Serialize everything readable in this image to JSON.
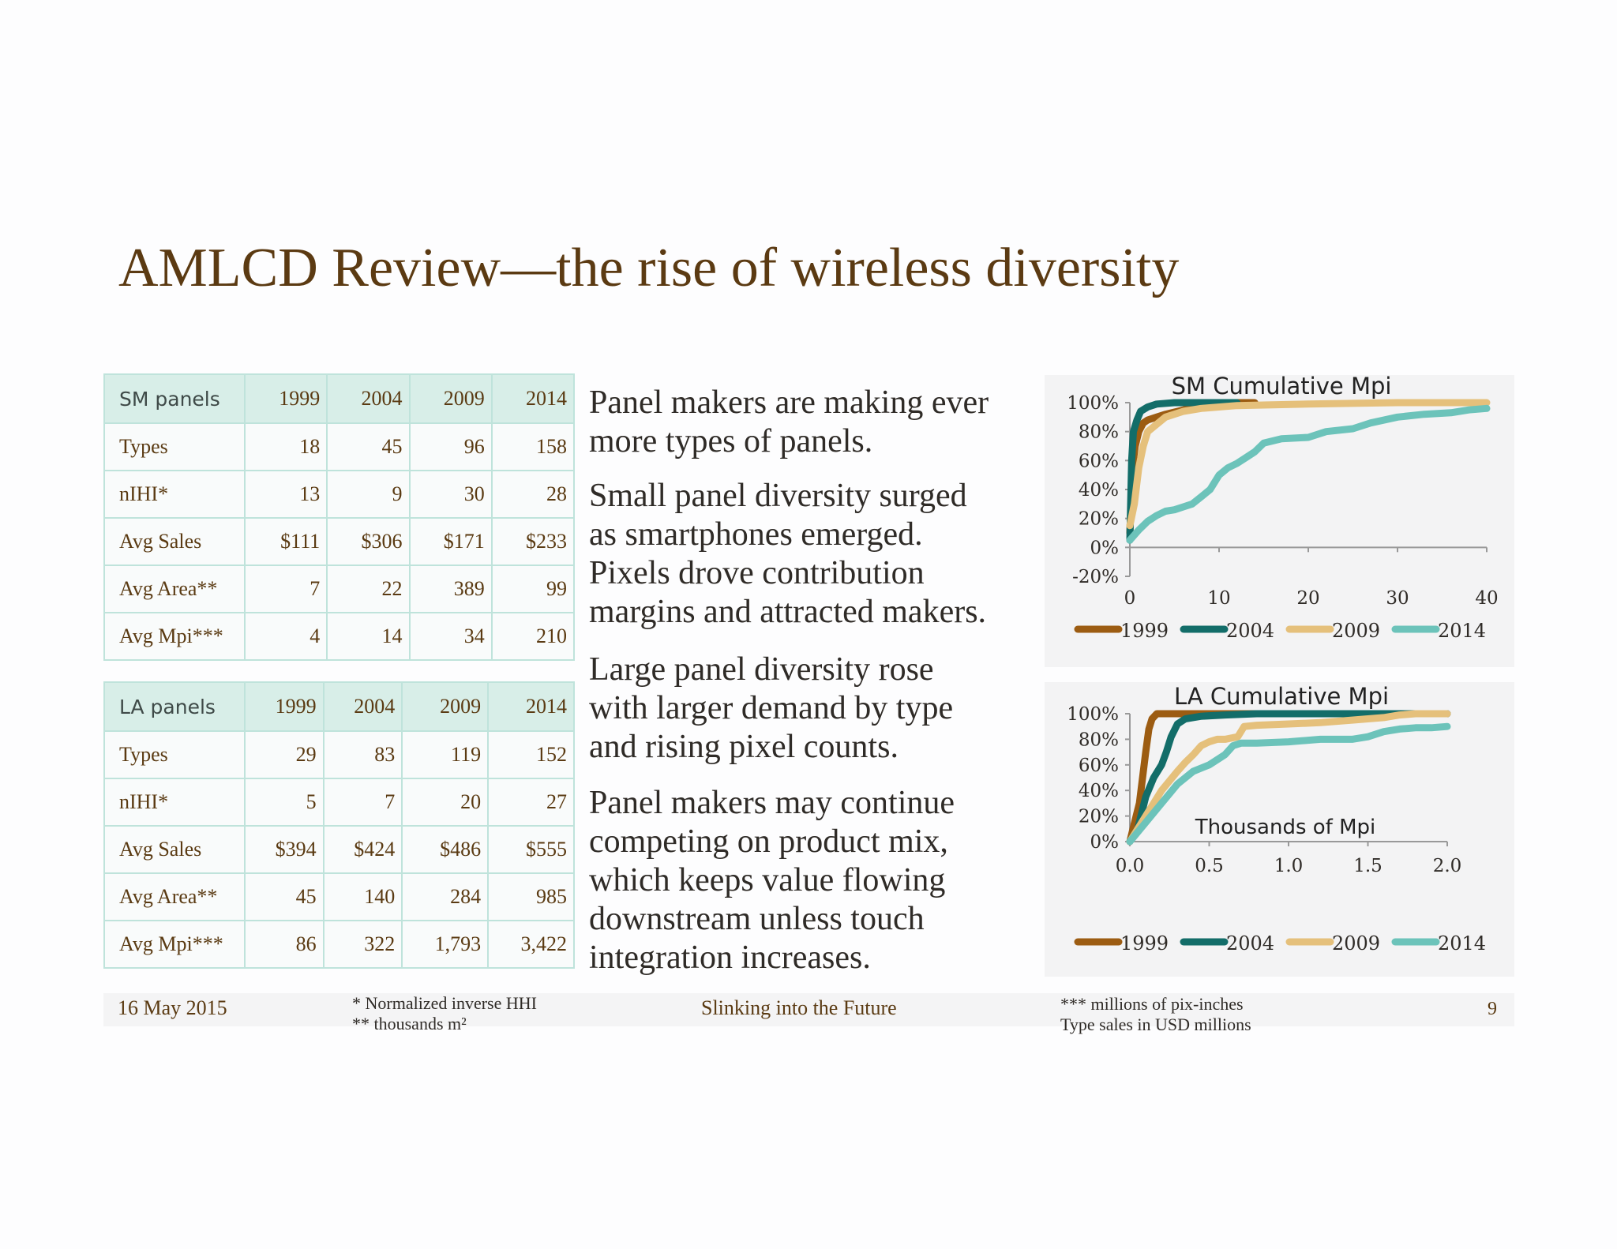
{
  "title": "AMLCD Review—the rise of wireless diversity",
  "sm_table": {
    "header": {
      "label": "SM panels",
      "years": [
        "1999",
        "2004",
        "2009",
        "2014"
      ]
    },
    "rows": [
      {
        "label": "Types",
        "values": [
          "18",
          "45",
          "96",
          "158"
        ]
      },
      {
        "label": "nIHI*",
        "values": [
          "13",
          "9",
          "30",
          "28"
        ]
      },
      {
        "label": "Avg Sales",
        "values": [
          "$111",
          "$306",
          "$171",
          "$233"
        ]
      },
      {
        "label": "Avg Area**",
        "values": [
          "7",
          "22",
          "389",
          "99"
        ]
      },
      {
        "label": "Avg Mpi***",
        "values": [
          "4",
          "14",
          "34",
          "210"
        ]
      }
    ]
  },
  "la_table": {
    "header": {
      "label": "LA panels",
      "years": [
        "1999",
        "2004",
        "2009",
        "2014"
      ]
    },
    "rows": [
      {
        "label": "Types",
        "values": [
          "29",
          "83",
          "119",
          "152"
        ]
      },
      {
        "label": "nIHI*",
        "values": [
          "5",
          "7",
          "20",
          "27"
        ]
      },
      {
        "label": "Avg Sales",
        "values": [
          "$394",
          "$424",
          "$486",
          "$555"
        ]
      },
      {
        "label": "Avg Area**",
        "values": [
          "45",
          "140",
          "284",
          "985"
        ]
      },
      {
        "label": "Avg Mpi***",
        "values": [
          "86",
          "322",
          "1,793",
          "3,422"
        ]
      }
    ]
  },
  "body_text": {
    "p1": [
      "Panel makers are making ever",
      "more types of panels."
    ],
    "p2": [
      "Small panel diversity surged",
      "as smartphones emerged.",
      "Pixels drove contribution",
      "margins and attracted makers."
    ],
    "p3": [
      "Large panel diversity rose",
      "with larger demand by type",
      "and rising pixel counts."
    ],
    "p4": [
      "Panel makers may continue",
      "competing on product mix,",
      "which keeps value flowing",
      "downstream unless touch",
      "integration increases."
    ]
  },
  "chart_data": [
    {
      "type": "line",
      "title": "SM Cumulative Mpi",
      "xlabel": "",
      "ylabel": "",
      "xlim": [
        0,
        40
      ],
      "ylim": [
        -0.2,
        1.0
      ],
      "x_ticks": [
        "0",
        "10",
        "20",
        "30",
        "40"
      ],
      "y_ticks": [
        "-20%",
        "0%",
        "20%",
        "40%",
        "60%",
        "80%",
        "100%"
      ],
      "series": [
        {
          "name": "1999",
          "color": "#9c5c12",
          "x": [
            0,
            0.3,
            0.6,
            1,
            1.5,
            2,
            3,
            4,
            6,
            8,
            10,
            12,
            14
          ],
          "y": [
            0.1,
            0.55,
            0.7,
            0.8,
            0.86,
            0.88,
            0.9,
            0.92,
            0.95,
            0.97,
            0.99,
            1.0,
            1.0
          ]
        },
        {
          "name": "2004",
          "color": "#136d69",
          "x": [
            0,
            0.2,
            0.4,
            0.8,
            1.2,
            2,
            3,
            5,
            8,
            12
          ],
          "y": [
            0.05,
            0.6,
            0.8,
            0.88,
            0.94,
            0.97,
            0.99,
            1.0,
            1.0,
            1.0
          ]
        },
        {
          "name": "2009",
          "color": "#e5c07b",
          "x": [
            0,
            0.5,
            1,
            1.5,
            2,
            3,
            4,
            6,
            8,
            12,
            20,
            30,
            40
          ],
          "y": [
            0.15,
            0.3,
            0.55,
            0.7,
            0.8,
            0.85,
            0.9,
            0.94,
            0.96,
            0.98,
            0.99,
            1.0,
            1.0
          ]
        },
        {
          "name": "2014",
          "color": "#6cc3ba",
          "x": [
            0,
            1,
            2,
            3,
            4,
            5,
            6,
            7,
            8,
            9,
            10,
            11,
            12,
            13,
            14,
            15,
            17,
            20,
            22,
            25,
            27,
            30,
            33,
            36,
            38,
            40
          ],
          "y": [
            0.05,
            0.12,
            0.18,
            0.22,
            0.25,
            0.26,
            0.28,
            0.3,
            0.35,
            0.4,
            0.5,
            0.55,
            0.58,
            0.62,
            0.66,
            0.72,
            0.75,
            0.76,
            0.8,
            0.82,
            0.86,
            0.9,
            0.92,
            0.93,
            0.95,
            0.96
          ]
        }
      ],
      "legend": "bottom"
    },
    {
      "type": "line",
      "title": "LA Cumulative Mpi",
      "xlabel": "Thousands of Mpi",
      "ylabel": "",
      "xlim": [
        0,
        2.0
      ],
      "ylim": [
        0,
        1.0
      ],
      "x_ticks": [
        "0.0",
        "0.5",
        "1.0",
        "1.5",
        "2.0"
      ],
      "y_ticks": [
        "0%",
        "20%",
        "40%",
        "60%",
        "80%",
        "100%"
      ],
      "series": [
        {
          "name": "1999",
          "color": "#9c5c12",
          "x": [
            0,
            0.04,
            0.06,
            0.08,
            0.1,
            0.12,
            0.14,
            0.17,
            0.2,
            0.3,
            0.6,
            1.0,
            2.0
          ],
          "y": [
            0,
            0.2,
            0.3,
            0.5,
            0.7,
            0.88,
            0.96,
            1.0,
            1.0,
            1.0,
            1.0,
            1.0,
            1.0
          ]
        },
        {
          "name": "2004",
          "color": "#136d69",
          "x": [
            0,
            0.05,
            0.1,
            0.15,
            0.2,
            0.23,
            0.26,
            0.3,
            0.35,
            0.45,
            0.6,
            0.8,
            1.2,
            2.0
          ],
          "y": [
            0,
            0.1,
            0.35,
            0.5,
            0.6,
            0.7,
            0.82,
            0.92,
            0.96,
            0.98,
            0.99,
            1.0,
            1.0,
            1.0
          ]
        },
        {
          "name": "2009",
          "color": "#e5c07b",
          "x": [
            0,
            0.1,
            0.2,
            0.3,
            0.35,
            0.4,
            0.45,
            0.5,
            0.55,
            0.6,
            0.68,
            0.72,
            0.8,
            1.0,
            1.2,
            1.4,
            1.6,
            1.7,
            1.8,
            2.0
          ],
          "y": [
            0,
            0.2,
            0.4,
            0.55,
            0.62,
            0.68,
            0.75,
            0.78,
            0.8,
            0.8,
            0.82,
            0.9,
            0.91,
            0.92,
            0.93,
            0.95,
            0.97,
            0.99,
            1.0,
            1.0
          ]
        },
        {
          "name": "2014",
          "color": "#6cc3ba",
          "x": [
            0,
            0.1,
            0.2,
            0.3,
            0.4,
            0.5,
            0.6,
            0.65,
            0.7,
            0.8,
            1.0,
            1.2,
            1.4,
            1.5,
            1.6,
            1.7,
            1.8,
            1.9,
            2.0
          ],
          "y": [
            0,
            0.15,
            0.3,
            0.45,
            0.55,
            0.6,
            0.68,
            0.75,
            0.77,
            0.77,
            0.78,
            0.8,
            0.8,
            0.82,
            0.86,
            0.88,
            0.89,
            0.89,
            0.9
          ]
        }
      ],
      "legend": "bottom"
    }
  ],
  "footer": {
    "date": "16 May 2015",
    "note_left": [
      "* Normalized inverse HHI",
      "** thousands m²"
    ],
    "center": "Slinking into the Future",
    "note_right": [
      "*** millions of pix-inches",
      "Type sales in USD millions"
    ],
    "page": "9"
  }
}
